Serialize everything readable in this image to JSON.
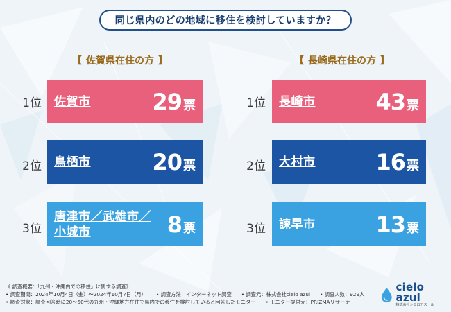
{
  "question": "同じ県内のどの地域に移住を検討していますか？",
  "bracket_open": "【",
  "bracket_close": "】",
  "colors": {
    "pink": "#e8607c",
    "navy": "#1b55a3",
    "sky": "#3aa2e0"
  },
  "saga": {
    "heading": "佐賀県在住の方",
    "rows": [
      {
        "rank": "1位",
        "city": "佐賀市",
        "votes": "29",
        "unit": "票"
      },
      {
        "rank": "2位",
        "city": "鳥栖市",
        "votes": "20",
        "unit": "票"
      },
      {
        "rank": "3位",
        "city_line1": "唐津市／武雄市／",
        "city_line2": "小城市",
        "votes": "8",
        "unit": "票"
      }
    ]
  },
  "nagasaki": {
    "heading": "長崎県在住の方",
    "rows": [
      {
        "rank": "1位",
        "city": "長崎市",
        "votes": "43",
        "unit": "票"
      },
      {
        "rank": "2位",
        "city": "大村市",
        "votes": "16",
        "unit": "票"
      },
      {
        "rank": "3位",
        "city": "諫早市",
        "votes": "13",
        "unit": "票"
      }
    ]
  },
  "footer": {
    "overview": "《 調査概要：「九州・沖縄内での移住」に関する調査》",
    "period": "• 調査期間：2024年10月4日（金）〜2024年10月7日（月）",
    "method": "• 調査方法：インターネット調査",
    "org": "• 調査元：株式会社cielo azul",
    "people": "• 調査人数：929人",
    "target": "• 調査対象：調査回答時に20〜50代の九州・沖縄地方在住で県内での移住を検討していると回答したモニター",
    "provider": "• モニター提供元：PRIZMAリサーチ"
  },
  "logo": {
    "name": "cielo azul",
    "sub": "株式会社シエロアスール"
  }
}
